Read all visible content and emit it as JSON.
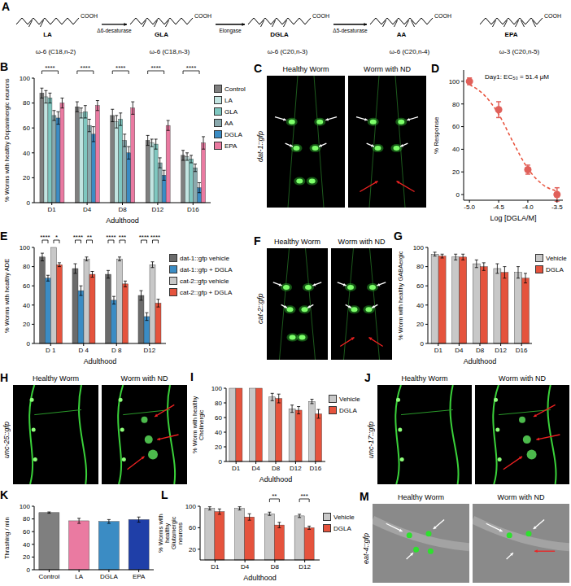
{
  "pathway": {
    "panel": "A",
    "group": "COOH",
    "compounds": [
      {
        "name": "LA",
        "class": "ω-6 (C18,n-2)"
      },
      {
        "name": "GLA",
        "class": "ω-6 (C18,n-3)"
      },
      {
        "name": "DGLA",
        "class": "ω-6 (C20,n-3)"
      },
      {
        "name": "AA",
        "class": "ω-6 (C20,n-4)"
      },
      {
        "name": "EPA",
        "class": "ω-3 (C20,n-5)"
      }
    ],
    "enzymes": [
      "Δ6-desaturase",
      "Elongase",
      "Δ5-desaturase"
    ]
  },
  "images": [
    {
      "panel": "C",
      "reporter": "dat-1::gfp",
      "left_title": "Healthy Worm",
      "right_title": "Worm with ND"
    },
    {
      "panel": "F",
      "reporter": "cat-2::gfp",
      "left_title": "Healthy Worm",
      "right_title": "Worm with ND"
    },
    {
      "panel": "H",
      "reporter": "unc-25::gfp",
      "left_title": "Healthy Worm",
      "right_title": "Worm with ND"
    },
    {
      "panel": "J",
      "reporter": "unc-17::gfp",
      "left_title": "Healthy Worm",
      "right_title": "Worm with ND"
    },
    {
      "panel": "M",
      "reporter": "eat-4::gfp",
      "left_title": "Healthy Worm",
      "right_title": "Worm with ND"
    }
  ],
  "chart_data": [
    {
      "panel": "B",
      "type": "bar",
      "categories": [
        "D1",
        "D4",
        "D8",
        "D12",
        "D16"
      ],
      "x_label": "Adulthood",
      "y_label": "% Worms with healthy Dopaminergic neurons",
      "ylim": [
        0,
        100
      ],
      "yticks": [
        0,
        20,
        40,
        60,
        80,
        100
      ],
      "legend": "right",
      "series": [
        {
          "name": "Control",
          "color": "#7f7f7f",
          "values": [
            88,
            77,
            70,
            50,
            38
          ],
          "error": [
            4,
            4,
            5,
            4,
            4
          ]
        },
        {
          "name": "LA",
          "color": "#c2e4e1",
          "values": [
            85,
            72,
            65,
            48,
            37
          ],
          "error": [
            5,
            4,
            5,
            3,
            3
          ]
        },
        {
          "name": "GLA",
          "color": "#7fc7c0",
          "values": [
            84,
            73,
            67,
            47,
            35
          ],
          "error": [
            4,
            5,
            5,
            4,
            3
          ]
        },
        {
          "name": "AA",
          "color": "#8aa9ad",
          "values": [
            70,
            62,
            50,
            32,
            28
          ],
          "error": [
            4,
            5,
            5,
            4,
            3
          ]
        },
        {
          "name": "DGLA",
          "color": "#3b8cc4",
          "values": [
            68,
            55,
            40,
            22,
            12
          ],
          "error": [
            5,
            6,
            5,
            4,
            4
          ]
        },
        {
          "name": "EPA",
          "color": "#ea7aa1",
          "values": [
            80,
            78,
            76,
            62,
            48
          ],
          "error": [
            4,
            4,
            5,
            4,
            5
          ]
        }
      ],
      "significance": [
        {
          "category": "D1",
          "from": "Control",
          "to": "DGLA",
          "label": "****"
        },
        {
          "category": "D4",
          "from": "Control",
          "to": "DGLA",
          "label": "****"
        },
        {
          "category": "D8",
          "from": "Control",
          "to": "DGLA",
          "label": "****"
        },
        {
          "category": "D12",
          "from": "Control",
          "to": "DGLA",
          "label": "****"
        },
        {
          "category": "D16",
          "from": "Control",
          "to": "DGLA",
          "label": "****"
        }
      ]
    },
    {
      "panel": "D",
      "type": "scatter",
      "x_label": "Log [DGLA/M]",
      "y_label": "% Response",
      "annotation": "Day1: EC₅₀ = 51.4 μM",
      "xlim": [
        -5.1,
        -3.4
      ],
      "xticks": [
        {
          "value": -5,
          "label": "-5.0"
        },
        -4.5,
        {
          "value": -4,
          "label": "-4.0"
        },
        -3.5
      ],
      "ylim": [
        -5,
        110
      ],
      "yticks": [
        0,
        20,
        40,
        60,
        80,
        100
      ],
      "series": [
        {
          "type": "scatter",
          "color": "#e0605a",
          "x": [
            -5,
            -4.5,
            -4,
            -3.5
          ],
          "values": [
            100,
            75,
            22,
            0
          ],
          "error": [
            3,
            7,
            4,
            6
          ]
        },
        {
          "type": "line",
          "line_style": "dashed",
          "color": "#e8503a",
          "x": [
            -5,
            -4.75,
            -4.5,
            -4.25,
            -4,
            -3.75,
            -3.5
          ],
          "values": [
            97,
            88,
            71,
            46,
            23,
            9,
            3
          ]
        }
      ]
    },
    {
      "panel": "E",
      "type": "bar",
      "categories": [
        "D 1",
        "D 4",
        "D 8",
        "D12"
      ],
      "x_label": "Adulthood",
      "y_label": "% Worms with healthy ADE",
      "ylim": [
        0,
        100
      ],
      "yticks": [
        0,
        20,
        40,
        60,
        80,
        100
      ],
      "legend": "right",
      "series": [
        {
          "name": "dat-1::gfp vehicle",
          "color": "#6b6b6b",
          "values": [
            90,
            78,
            72,
            50
          ],
          "error": [
            4,
            5,
            4,
            5
          ]
        },
        {
          "name": "dat-1::gfp + DGLA",
          "color": "#3b8cc4",
          "values": [
            68,
            55,
            45,
            28
          ],
          "error": [
            3,
            5,
            4,
            4
          ]
        },
        {
          "name": "cat-2::gfp vehicle",
          "color": "#c8c8c8",
          "values": [
            100,
            88,
            88,
            82
          ],
          "error": [
            0,
            2,
            2,
            3
          ]
        },
        {
          "name": "cat-2::gfp + DGLA",
          "color": "#e5533d",
          "values": [
            82,
            72,
            62,
            42
          ],
          "error": [
            2,
            3,
            3,
            4
          ]
        }
      ],
      "significance": [
        {
          "category": "D 1",
          "from": "dat-1::gfp vehicle",
          "to": "dat-1::gfp + DGLA",
          "label": "****"
        },
        {
          "category": "D 1",
          "from": "cat-2::gfp vehicle",
          "to": "cat-2::gfp + DGLA",
          "label": "*"
        },
        {
          "category": "D 4",
          "from": "dat-1::gfp vehicle",
          "to": "dat-1::gfp + DGLA",
          "label": "****"
        },
        {
          "category": "D 4",
          "from": "cat-2::gfp vehicle",
          "to": "cat-2::gfp + DGLA",
          "label": "**"
        },
        {
          "category": "D 8",
          "from": "dat-1::gfp vehicle",
          "to": "dat-1::gfp + DGLA",
          "label": "****"
        },
        {
          "category": "D 8",
          "from": "cat-2::gfp vehicle",
          "to": "cat-2::gfp + DGLA",
          "label": "***"
        },
        {
          "category": "D12",
          "from": "dat-1::gfp vehicle",
          "to": "dat-1::gfp + DGLA",
          "label": "****"
        },
        {
          "category": "D12",
          "from": "cat-2::gfp vehicle",
          "to": "cat-2::gfp + DGLA",
          "label": "****"
        }
      ]
    },
    {
      "panel": "G",
      "type": "bar",
      "categories": [
        "D1",
        "D4",
        "D8",
        "D12",
        "D16"
      ],
      "x_label": "Adulthood",
      "y_label": "% Worm with healthy GABAergic",
      "ylim": [
        0,
        100
      ],
      "yticks": [
        0,
        20,
        40,
        60,
        80,
        100
      ],
      "legend": "right",
      "series": [
        {
          "name": "Vehicle",
          "color": "#c8c8c8",
          "values": [
            93,
            90,
            83,
            78,
            74
          ],
          "error": [
            2,
            3,
            4,
            5,
            6
          ]
        },
        {
          "name": "DGLA",
          "color": "#e5533d",
          "values": [
            91,
            90,
            80,
            74,
            68
          ],
          "error": [
            2,
            3,
            4,
            6,
            5
          ]
        }
      ]
    },
    {
      "panel": "I",
      "type": "bar",
      "categories": [
        "D1",
        "D4",
        "D8",
        "D12",
        "D16"
      ],
      "x_label": "Adulthood",
      "y_label": "% Worm with healthy Cholinergic",
      "ylim": [
        0,
        100
      ],
      "yticks": [
        0,
        20,
        40,
        60,
        80,
        100
      ],
      "legend": "right",
      "series": [
        {
          "name": "Vehicle",
          "color": "#c8c8c8",
          "values": [
            100,
            100,
            88,
            72,
            82
          ],
          "error": [
            0,
            0,
            5,
            5,
            3
          ]
        },
        {
          "name": "DGLA",
          "color": "#e5533d",
          "values": [
            100,
            100,
            86,
            70,
            65
          ],
          "error": [
            0,
            0,
            6,
            5,
            6
          ]
        }
      ]
    },
    {
      "panel": "K",
      "type": "bar",
      "categories": [
        "Control",
        "LA",
        "DGLA",
        "EPA"
      ],
      "y_label": "Thrashing / min",
      "ylim": [
        0,
        100
      ],
      "yticks": [
        0,
        20,
        40,
        60,
        80,
        100
      ],
      "values": [
        90,
        77,
        76,
        79
      ],
      "error": [
        1,
        4,
        3,
        4
      ],
      "colors": [
        "#7f7f7f",
        "#ea7aa1",
        "#3b8cc4",
        "#1f3fa8"
      ]
    },
    {
      "panel": "L",
      "type": "bar",
      "categories": [
        "D1",
        "D4",
        "D8",
        "D12"
      ],
      "x_label": "Adulthood",
      "y_label": "% Worms with healthy Glutamergic neurons",
      "ylim": [
        0,
        100
      ],
      "yticks": [
        0,
        20,
        40,
        60,
        80,
        100
      ],
      "legend": "right",
      "series": [
        {
          "name": "Vehicle",
          "color": "#c8c8c8",
          "values": [
            96,
            96,
            86,
            82
          ],
          "error": [
            3,
            3,
            3,
            3
          ]
        },
        {
          "name": "DGLA",
          "color": "#e5533d",
          "values": [
            90,
            80,
            65,
            60
          ],
          "error": [
            5,
            6,
            5,
            3
          ]
        }
      ],
      "significance": [
        {
          "category": "D8",
          "from": "Vehicle",
          "to": "DGLA",
          "label": "**"
        },
        {
          "category": "D12",
          "from": "Vehicle",
          "to": "DGLA",
          "label": "***"
        }
      ]
    }
  ]
}
